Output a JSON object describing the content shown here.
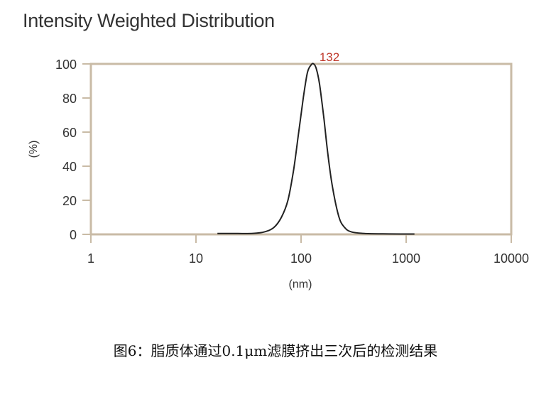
{
  "title": "Intensity Weighted Distribution",
  "caption": "图6：脂质体通过0.1μm滤膜挤出三次后的检测结果",
  "colors": {
    "frame": "#c9bba6",
    "curve": "#222222",
    "peak_label": "#c0392b"
  },
  "chart_data": {
    "type": "line",
    "title": "Intensity Weighted Distribution",
    "xlabel": "(nm)",
    "ylabel": "(%)",
    "xscale": "log",
    "xlim": [
      1,
      10000
    ],
    "ylim": [
      0,
      100
    ],
    "xticks": [
      1,
      10,
      100,
      1000,
      10000
    ],
    "xtick_labels": [
      "1",
      "10",
      "100",
      "1000",
      "10000"
    ],
    "yticks": [
      0,
      20,
      40,
      60,
      80,
      100
    ],
    "ytick_labels": [
      "0",
      "20",
      "40",
      "60",
      "80",
      "100"
    ],
    "grid": false,
    "peak_label": "132",
    "series": [
      {
        "x": [
          16,
          25,
          35,
          45,
          55,
          65,
          75,
          85,
          95,
          105,
          115,
          125,
          132,
          140,
          150,
          165,
          180,
          200,
          230,
          260,
          300,
          400,
          600,
          900,
          1200
        ],
        "y": [
          0.5,
          0.5,
          0.6,
          1.5,
          4,
          10,
          20,
          38,
          60,
          80,
          95,
          99.5,
          100,
          97,
          88,
          68,
          47,
          27,
          10,
          4,
          1.5,
          0.5,
          0.3,
          0.2,
          0.2
        ]
      }
    ]
  }
}
